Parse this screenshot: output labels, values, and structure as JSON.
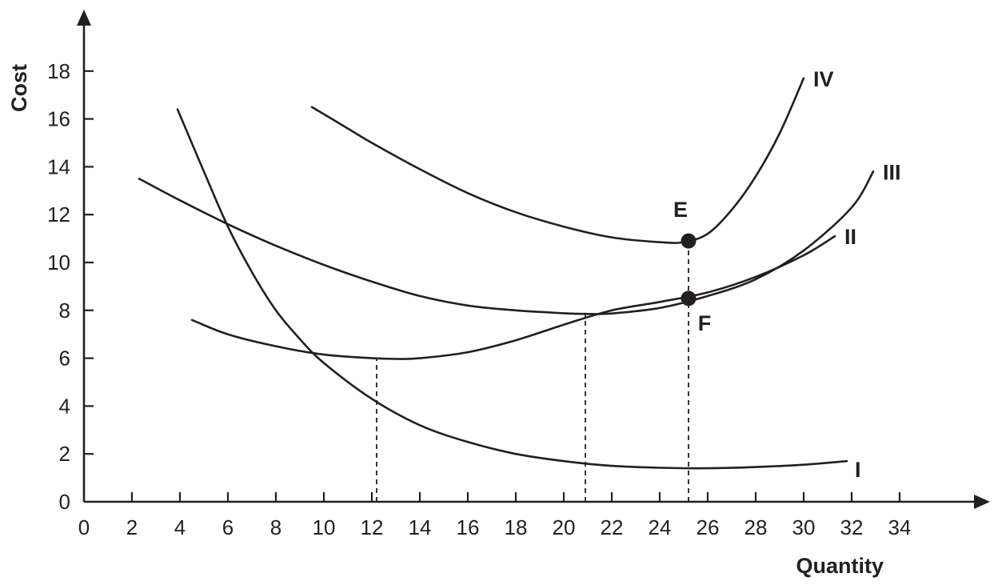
{
  "chart_data": {
    "type": "line",
    "title": "",
    "xlabel": "Quantity",
    "ylabel": "Cost",
    "xlim": [
      0,
      34
    ],
    "ylim": [
      0,
      18
    ],
    "x_ticks": [
      0,
      2,
      4,
      6,
      8,
      10,
      12,
      14,
      16,
      18,
      20,
      22,
      24,
      26,
      28,
      30,
      32,
      34
    ],
    "y_ticks": [
      0,
      2,
      4,
      6,
      8,
      10,
      12,
      14,
      16,
      18
    ],
    "grid": false,
    "series": [
      {
        "name": "I",
        "x": [
          3.9,
          5,
          6,
          7,
          8,
          9,
          10,
          12,
          14,
          16,
          18,
          20,
          22,
          24,
          26,
          28,
          30,
          31.8
        ],
        "y": [
          16.4,
          13.8,
          11.5,
          9.6,
          8.0,
          6.8,
          5.8,
          4.3,
          3.2,
          2.5,
          2.0,
          1.7,
          1.5,
          1.42,
          1.4,
          1.45,
          1.55,
          1.7
        ]
      },
      {
        "name": "II",
        "x": [
          4.5,
          6,
          8,
          10,
          12,
          13,
          14,
          16,
          18,
          20,
          22,
          24,
          26,
          28,
          30,
          31.3
        ],
        "y": [
          7.6,
          7.0,
          6.5,
          6.15,
          6.0,
          5.97,
          6.0,
          6.25,
          6.75,
          7.4,
          8.0,
          8.35,
          8.75,
          9.4,
          10.3,
          11.1
        ]
      },
      {
        "name": "III",
        "x": [
          2.3,
          4,
          6,
          8,
          10,
          12,
          14,
          16,
          18,
          20,
          21,
          22,
          24,
          26,
          28,
          30,
          32,
          32.9
        ],
        "y": [
          13.5,
          12.6,
          11.6,
          10.7,
          9.9,
          9.2,
          8.6,
          8.2,
          8.0,
          7.88,
          7.85,
          7.87,
          8.1,
          8.6,
          9.3,
          10.5,
          12.3,
          13.8
        ]
      },
      {
        "name": "IV",
        "x": [
          9.5,
          11,
          12,
          14,
          16,
          18,
          20,
          22,
          24,
          25,
          26,
          27,
          28,
          29,
          30
        ],
        "y": [
          16.5,
          15.6,
          15.0,
          13.9,
          12.9,
          12.1,
          11.5,
          11.05,
          10.85,
          10.85,
          11.2,
          12.2,
          13.6,
          15.4,
          17.7
        ]
      }
    ],
    "points": [
      {
        "label": "E",
        "x": 25.2,
        "y": 10.9
      },
      {
        "label": "F",
        "x": 25.2,
        "y": 8.5
      }
    ],
    "guides": [
      {
        "x": 12.2,
        "y_top": 6.0
      },
      {
        "x": 20.9,
        "y_top": 7.9
      },
      {
        "x": 25.2,
        "y_top": 10.9
      }
    ]
  }
}
